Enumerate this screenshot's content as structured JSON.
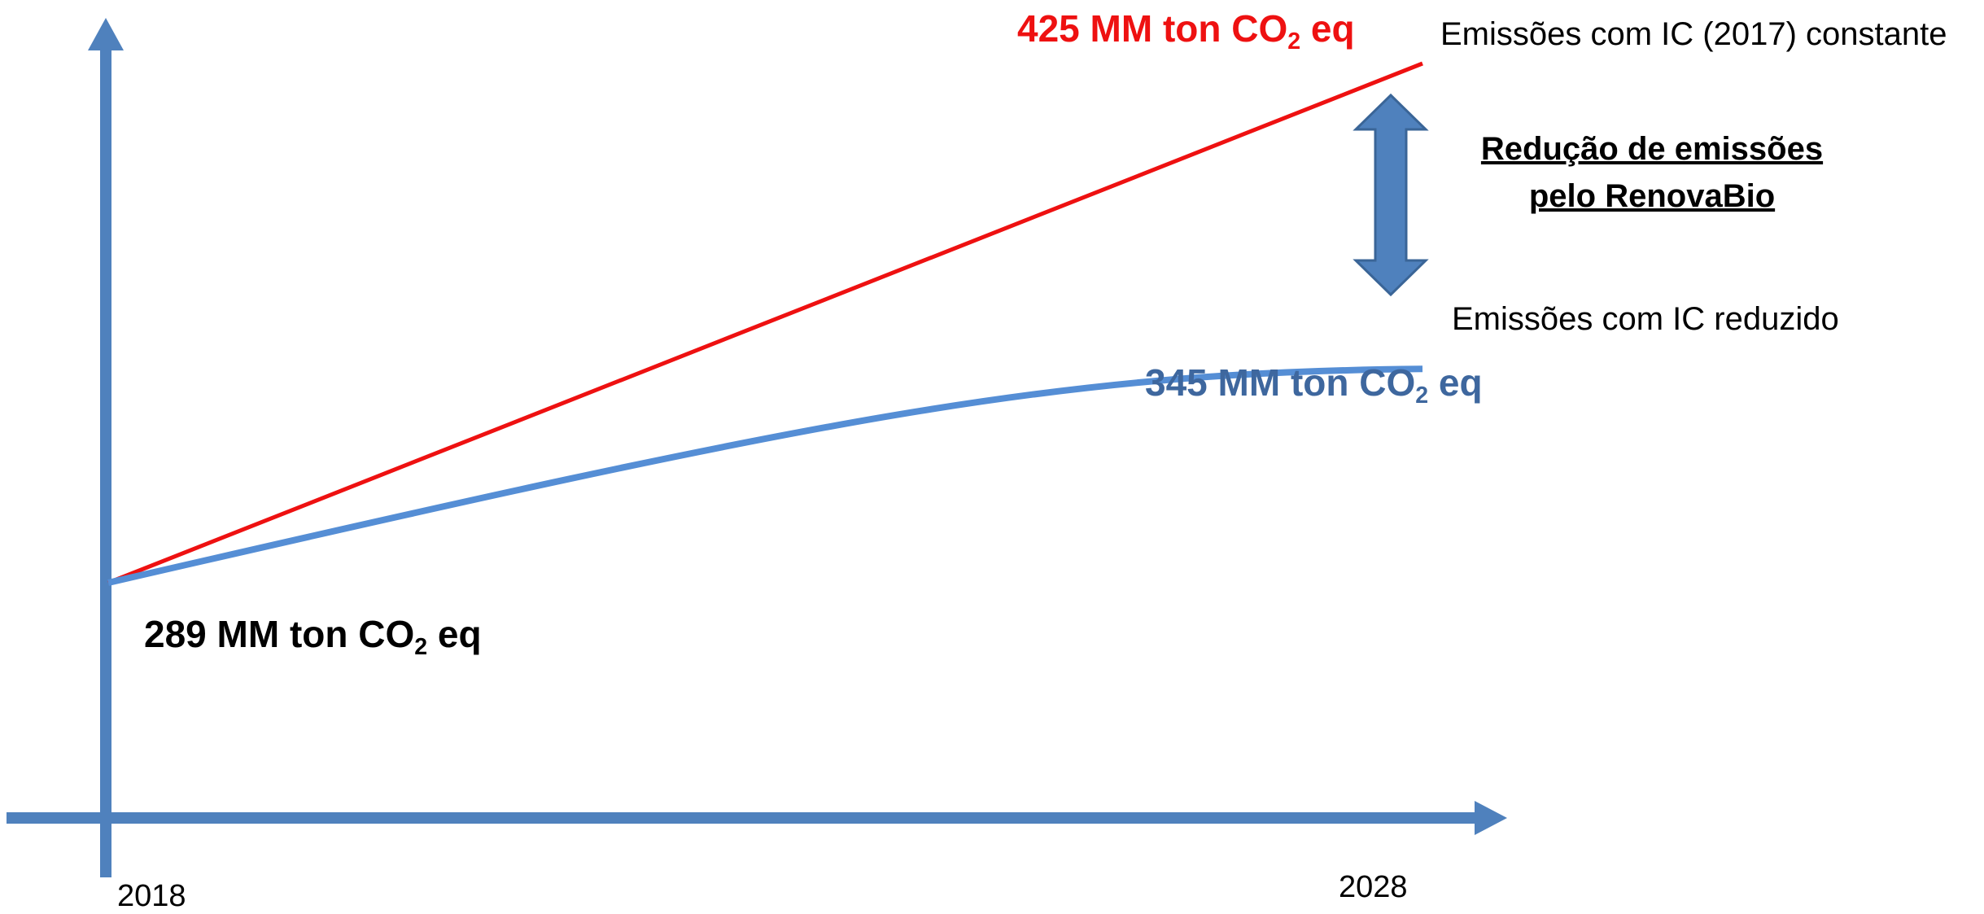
{
  "chart_data": {
    "type": "line",
    "x": [
      2018,
      2028
    ],
    "xticks": [
      "2018",
      "2028"
    ],
    "series": [
      {
        "name": "Emissões com IC (2017) constante",
        "values": [
          289,
          425
        ],
        "end_value_label": {
          "main": "425 MM ton CO",
          "sub": "2",
          "tail": " eq"
        },
        "color": "#ee1111"
      },
      {
        "name": "Emissões com IC reduzido",
        "values": [
          289,
          345
        ],
        "end_value_label": {
          "main": "345 MM ton CO",
          "sub": "2",
          "tail": " eq"
        },
        "color": "#558ed5"
      }
    ],
    "start_value_label": {
      "main": "289 MM ton CO",
      "sub": "2",
      "tail": " eq"
    },
    "annotation": {
      "line1": "Redução de emissões",
      "line2": "pelo RenovaBio"
    },
    "colors": {
      "axis": "#4f81bd",
      "arrow": "#4f81bd",
      "start_label": "#000000",
      "high_label": "#ee1111",
      "low_label": "#3e679e"
    },
    "grid": false,
    "legend": "none"
  }
}
